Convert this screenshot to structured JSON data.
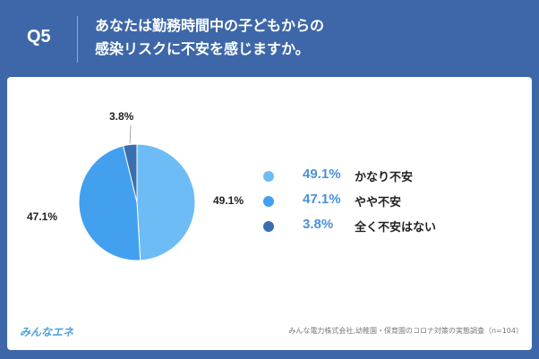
{
  "header": {
    "question_number": "Q5",
    "title_line1": "あなたは勤務時間中の子どもからの",
    "title_line2": "感染リスクに不安を感じますか。"
  },
  "chart_data": {
    "type": "pie",
    "slices": [
      {
        "label": "かなり不安",
        "value": 49.1,
        "value_label": "49.1%",
        "color": "#6ebcf5"
      },
      {
        "label": "やや不安",
        "value": 47.1,
        "value_label": "47.1%",
        "color": "#42a0ef"
      },
      {
        "label": "全く不安はない",
        "value": 3.8,
        "value_label": "3.8%",
        "color": "#3a6fae"
      }
    ],
    "legend_position": "right",
    "legend_value_color": "#4a90d9"
  },
  "footer": {
    "brand": "みんなエネ",
    "source": "みんな電力株式会社,幼稚園・保育園のコロナ対策の実態調査（n=104）"
  }
}
